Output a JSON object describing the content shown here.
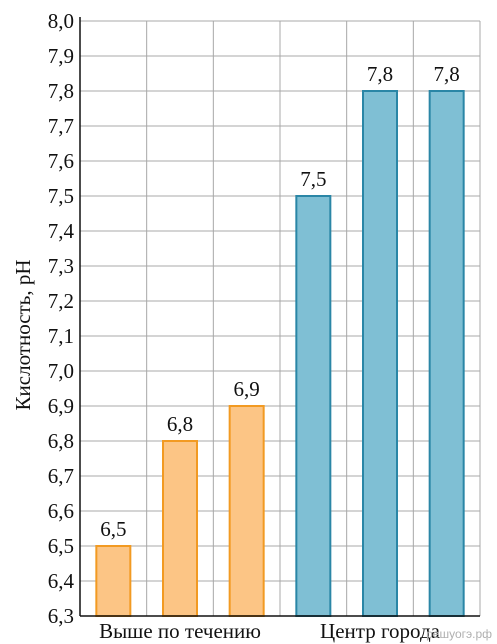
{
  "chart_data": {
    "type": "bar",
    "ylabel": "Кислотность, pH",
    "ylim": [
      6.3,
      8.0
    ],
    "ytick_step": 0.1,
    "grid": true,
    "values": [
      6.5,
      6.8,
      6.9,
      7.5,
      7.8,
      7.8
    ],
    "value_labels": [
      "6,5",
      "6,8",
      "6,9",
      "7,5",
      "7,8",
      "7,8"
    ],
    "groups": [
      {
        "label": "Выше по течению",
        "indices": [
          0,
          1,
          2
        ],
        "fill": "#fcc585",
        "stroke": "#f29a22"
      },
      {
        "label": "Центр города",
        "indices": [
          3,
          4,
          5
        ],
        "fill": "#7fbfd4",
        "stroke": "#2a86a6"
      }
    ]
  },
  "watermark": "решуогэ.рф"
}
